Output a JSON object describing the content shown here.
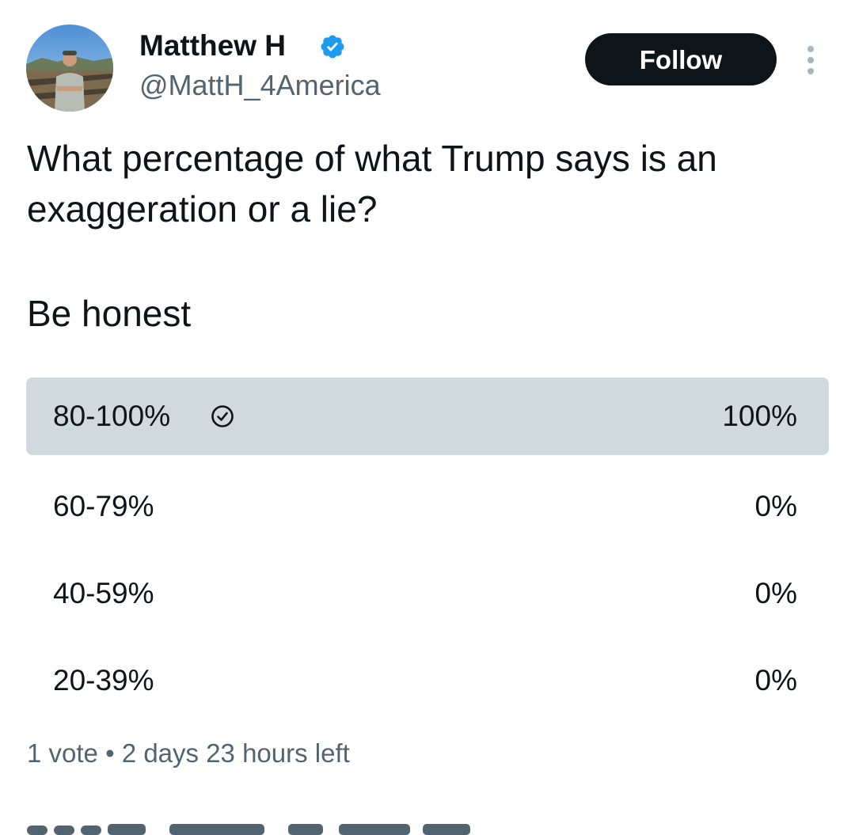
{
  "author": {
    "display_name": "Matthew H",
    "handle": "@MattH_4America",
    "verified": true,
    "avatar_icon": "profile-photo"
  },
  "actions": {
    "follow_label": "Follow",
    "more_icon": "more-vertical-icon"
  },
  "tweet": {
    "text": "What percentage of what Trump says is an exaggeration or a lie?",
    "text2": "Be honest"
  },
  "poll": {
    "options": [
      {
        "label": "80-100%",
        "percent_label": "100%",
        "percent": 100,
        "voted": true
      },
      {
        "label": "60-79%",
        "percent_label": "0%",
        "percent": 0,
        "voted": false
      },
      {
        "label": "40-59%",
        "percent_label": "0%",
        "percent": 0,
        "voted": false
      },
      {
        "label": "20-39%",
        "percent_label": "0%",
        "percent": 0,
        "voted": false
      }
    ],
    "votes": "1 vote",
    "separator": "•",
    "time_left": "2 days 23 hours left"
  },
  "colors": {
    "text_primary": "#0f1419",
    "text_secondary": "#536471",
    "poll_bar": "#cfd9de",
    "verified_blue": "#1d9bf0",
    "follow_bg": "#0f1419"
  }
}
